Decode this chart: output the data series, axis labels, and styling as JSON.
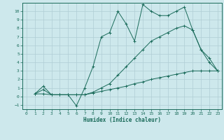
{
  "line1_x": [
    1,
    2,
    3,
    4,
    5,
    6,
    7,
    8,
    9,
    10,
    11,
    12,
    13,
    14,
    15,
    16,
    17,
    18,
    19,
    20,
    21,
    22,
    23
  ],
  "line1_y": [
    0.3,
    1.2,
    0.2,
    0.2,
    0.2,
    -1.1,
    1.0,
    3.5,
    7.0,
    7.5,
    10.0,
    8.5,
    6.5,
    10.8,
    10.0,
    9.5,
    9.5,
    10.0,
    10.5,
    7.8,
    5.5,
    4.0,
    3.0
  ],
  "line2_x": [
    1,
    2,
    3,
    4,
    5,
    6,
    7,
    8,
    9,
    10,
    11,
    12,
    13,
    14,
    15,
    16,
    17,
    18,
    19,
    20,
    21,
    22,
    23
  ],
  "line2_y": [
    0.3,
    0.8,
    0.2,
    0.2,
    0.2,
    0.2,
    0.2,
    0.5,
    1.0,
    1.5,
    2.5,
    3.5,
    4.5,
    5.5,
    6.5,
    7.0,
    7.5,
    8.0,
    8.3,
    7.8,
    5.5,
    4.5,
    3.0
  ],
  "line3_x": [
    1,
    2,
    3,
    4,
    5,
    6,
    7,
    8,
    9,
    10,
    11,
    12,
    13,
    14,
    15,
    16,
    17,
    18,
    19,
    20,
    21,
    22,
    23
  ],
  "line3_y": [
    0.3,
    0.3,
    0.2,
    0.2,
    0.2,
    0.2,
    0.2,
    0.4,
    0.6,
    0.8,
    1.0,
    1.2,
    1.5,
    1.7,
    2.0,
    2.2,
    2.4,
    2.6,
    2.8,
    3.0,
    3.0,
    3.0,
    3.0
  ],
  "line_color": "#1a6b5a",
  "bg_color": "#cde8ec",
  "grid_color": "#b0cdd4",
  "xlabel": "Humidex (Indice chaleur)",
  "ylim": [
    -1.5,
    11.0
  ],
  "xlim": [
    -0.5,
    23.5
  ],
  "yticks": [
    -1,
    0,
    1,
    2,
    3,
    4,
    5,
    6,
    7,
    8,
    9,
    10
  ],
  "xticks": [
    0,
    1,
    2,
    3,
    4,
    5,
    6,
    7,
    8,
    9,
    10,
    11,
    12,
    13,
    14,
    15,
    16,
    17,
    18,
    19,
    20,
    21,
    22,
    23
  ]
}
